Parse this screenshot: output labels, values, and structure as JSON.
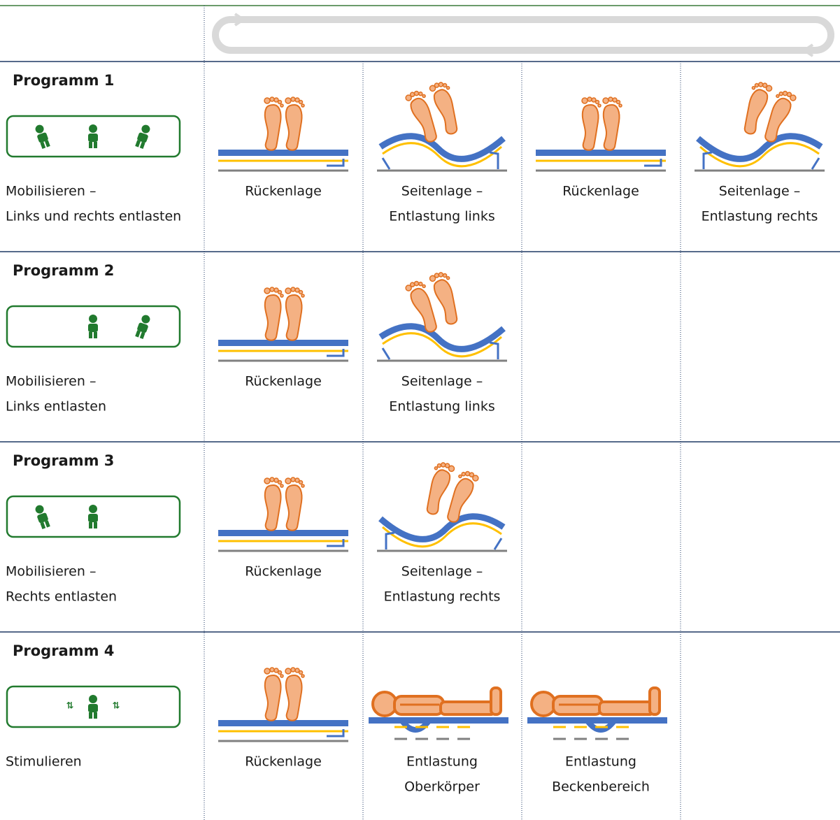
{
  "rows": [
    {
      "title": "Programm 1",
      "description": [
        "Mobilisieren –",
        "Links und rechts entlasten"
      ],
      "steps": [
        [
          "Rückenlage"
        ],
        [
          "Seitenlage –",
          "Entlastung links"
        ],
        [
          "Rückenlage"
        ],
        [
          "Seitenlage –",
          "Entlastung rechts"
        ]
      ]
    },
    {
      "title": "Programm 2",
      "description": [
        "Mobilisieren –",
        "Links entlasten"
      ],
      "steps": [
        [
          "Rückenlage"
        ],
        [
          "Seitenlage –",
          "Entlastung links"
        ]
      ]
    },
    {
      "title": "Programm 3",
      "description": [
        "Mobilisieren –",
        "Rechts entlasten"
      ],
      "steps": [
        [
          "Rückenlage"
        ],
        [
          "Seitenlage –",
          "Entlastung rechts"
        ]
      ]
    },
    {
      "title": "Programm 4",
      "description": [
        "Stimulieren"
      ],
      "steps": [
        [
          "Rückenlage"
        ],
        [
          "Entlastung",
          "Oberkörper"
        ],
        [
          "Entlastung",
          "Beckenbereich"
        ]
      ]
    }
  ]
}
